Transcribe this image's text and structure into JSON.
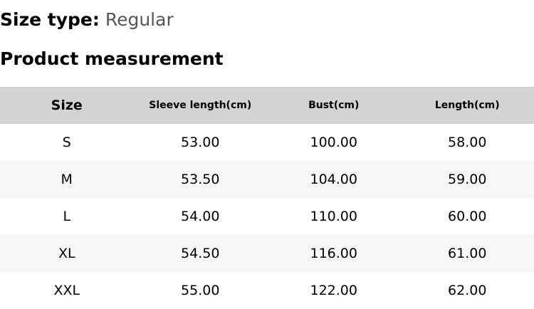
{
  "size_type": {
    "label": "Size type:",
    "value": "Regular"
  },
  "section_title": "Product measurement",
  "table": {
    "headers": [
      "Size",
      "Sleeve length(cm)",
      "Bust(cm)",
      "Length(cm)"
    ],
    "rows": [
      [
        "S",
        "53.00",
        "100.00",
        "58.00"
      ],
      [
        "M",
        "53.50",
        "104.00",
        "59.00"
      ],
      [
        "L",
        "54.00",
        "110.00",
        "60.00"
      ],
      [
        "XL",
        "54.50",
        "116.00",
        "61.00"
      ],
      [
        "XXL",
        "55.00",
        "122.00",
        "62.00"
      ]
    ]
  },
  "colors": {
    "header_bg": "#d3d3d3",
    "alt_row_bg": "#f7f7f7",
    "value_text": "#555555"
  }
}
